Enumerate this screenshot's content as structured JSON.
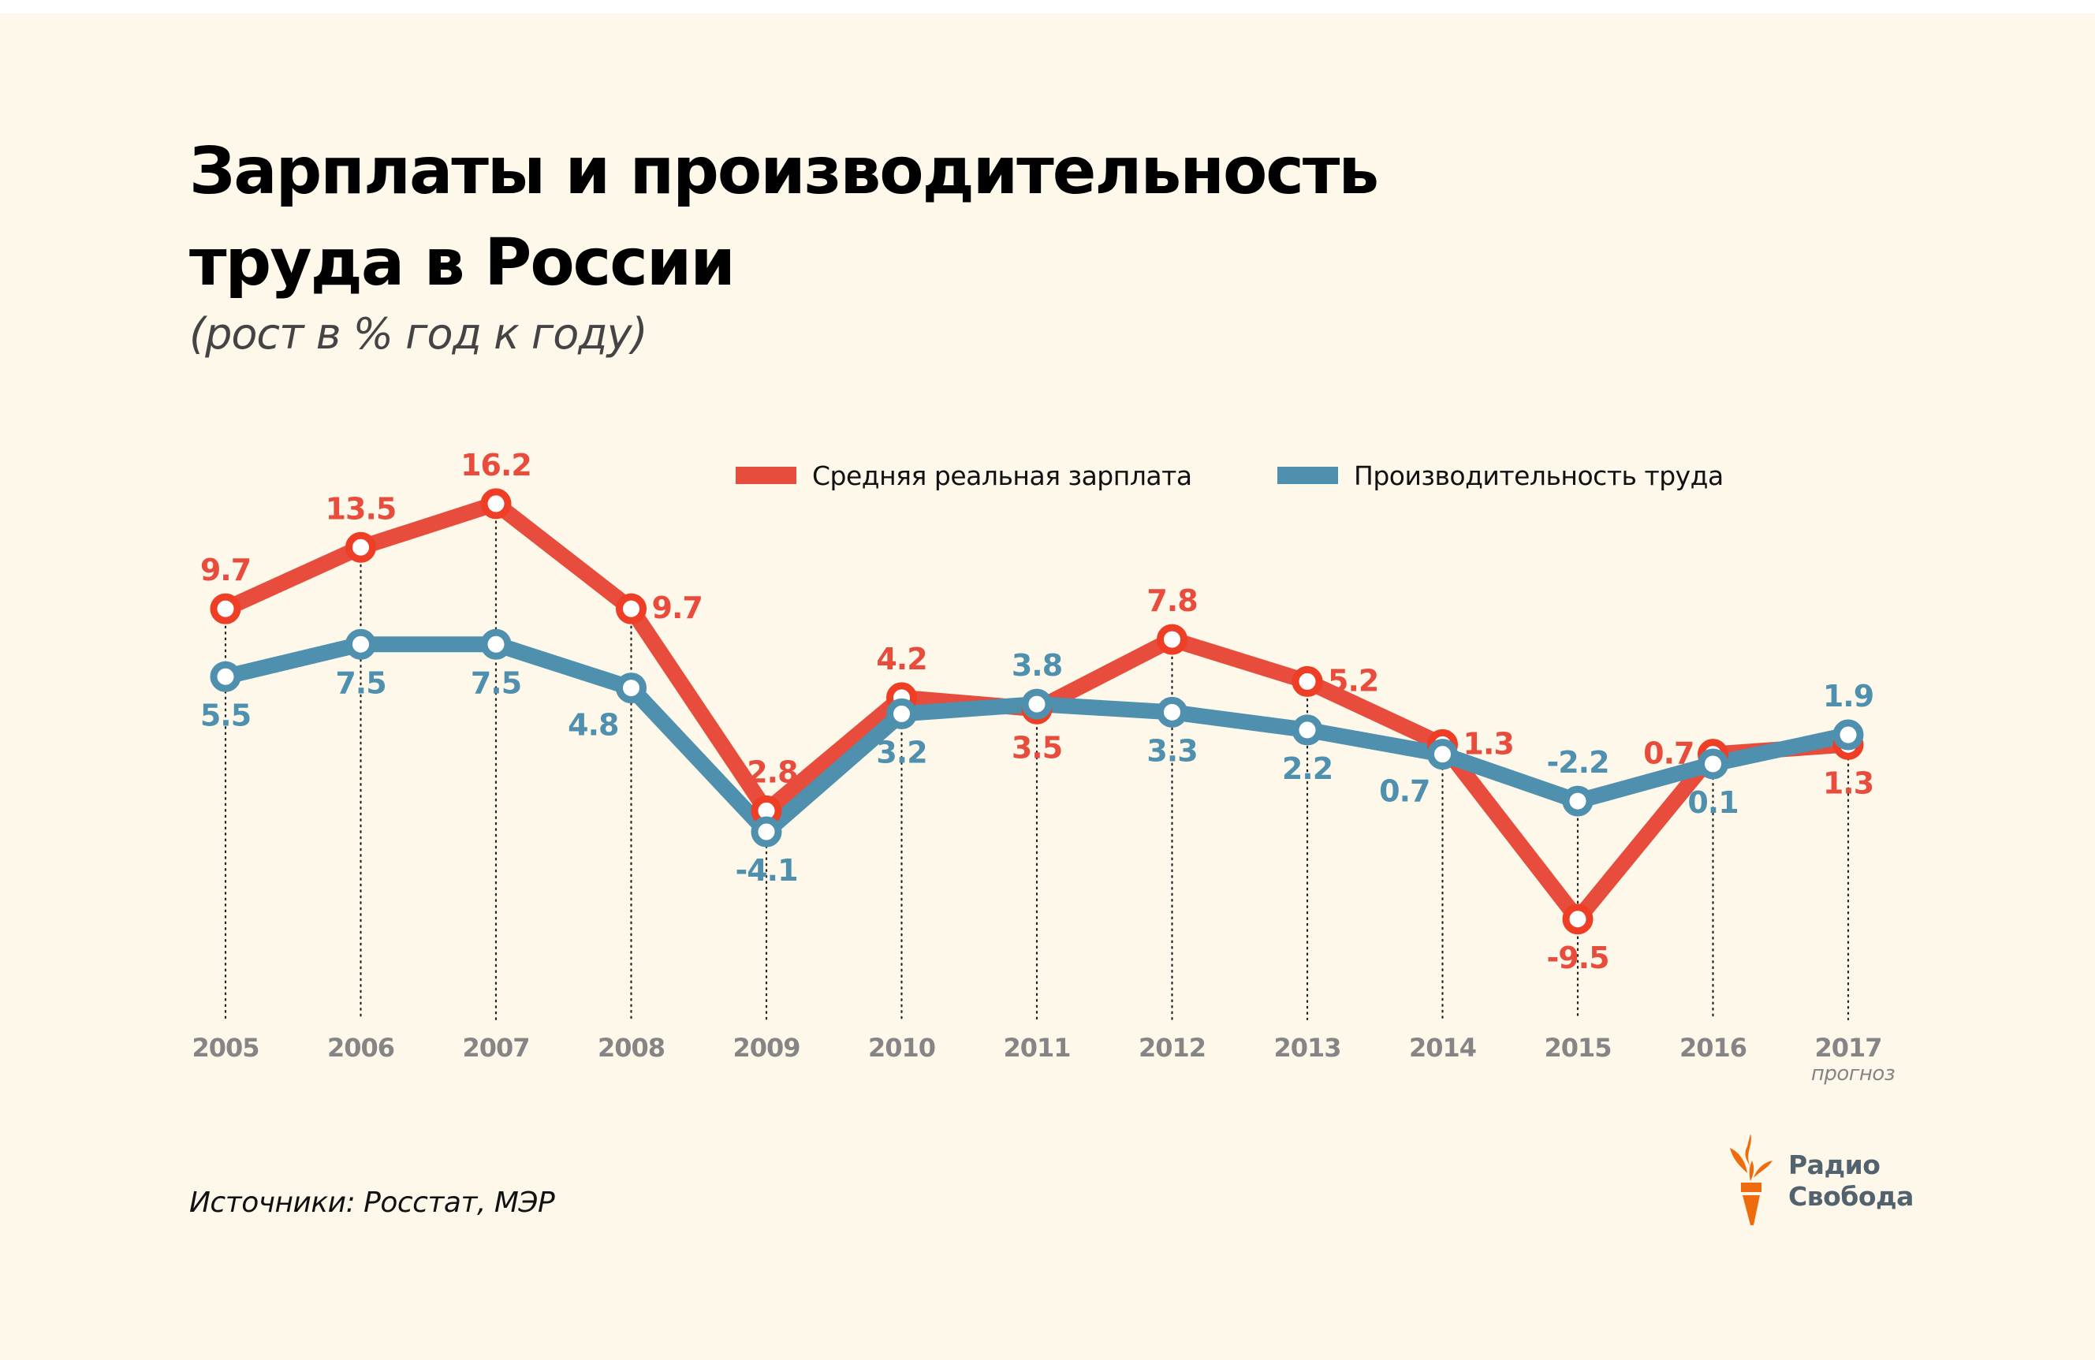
{
  "header": {
    "title_lines": [
      "Зарплаты и производительность",
      "труда в России"
    ],
    "subtitle": "(рост в % год к году)"
  },
  "legend": [
    {
      "label": "Средняя реальная зарплата",
      "color": "#e84c3d"
    },
    {
      "label": "Производительность труда",
      "color": "#4e90ad"
    }
  ],
  "footer": {
    "source": "Источники: Росстат, МЭР",
    "logo_line1": "Радио",
    "logo_line2": "Свобода",
    "logo_icon": "torch-icon"
  },
  "colors": {
    "background": "#fdf8ea",
    "wages": "#e84c3d",
    "wages_marker": "#ef3e26",
    "productivity": "#4e90ad",
    "axis_label": "#858585",
    "logo_orange": "#ee6c0e",
    "logo_text": "#52636f"
  },
  "chart_data": {
    "type": "line",
    "title": "Зарплаты и производительность труда в России",
    "subtitle": "(рост в % год к году)",
    "xlabel": "",
    "ylabel": "",
    "categories": [
      "2005",
      "2006",
      "2007",
      "2008",
      "2009",
      "2010",
      "2011",
      "2012",
      "2013",
      "2014",
      "2015",
      "2016",
      "2017"
    ],
    "category_notes": {
      "2017": "прогноз"
    },
    "ylim": [
      -11,
      18
    ],
    "grid": "vertical dotted lines per year",
    "legend_position": "top-right",
    "series": [
      {
        "name": "Средняя реальная зарплата",
        "color": "#e84c3d",
        "values": [
          9.7,
          13.5,
          16.2,
          9.7,
          -2.8,
          4.2,
          3.5,
          7.8,
          5.2,
          1.3,
          -9.5,
          0.7,
          1.3
        ],
        "label_pos": [
          "above",
          "above",
          "above",
          "right",
          "above",
          "above",
          "below",
          "above",
          "right",
          "right",
          "below",
          "left",
          "below"
        ]
      },
      {
        "name": "Производительность труда",
        "color": "#4e90ad",
        "values": [
          5.5,
          7.5,
          7.5,
          4.8,
          -4.1,
          3.2,
          3.8,
          3.3,
          2.2,
          0.7,
          -2.2,
          0.1,
          1.9
        ],
        "label_pos": [
          "below",
          "below",
          "below",
          "below-left",
          "below",
          "below",
          "above",
          "below",
          "below",
          "below-left",
          "above",
          "below",
          "above"
        ]
      }
    ]
  }
}
